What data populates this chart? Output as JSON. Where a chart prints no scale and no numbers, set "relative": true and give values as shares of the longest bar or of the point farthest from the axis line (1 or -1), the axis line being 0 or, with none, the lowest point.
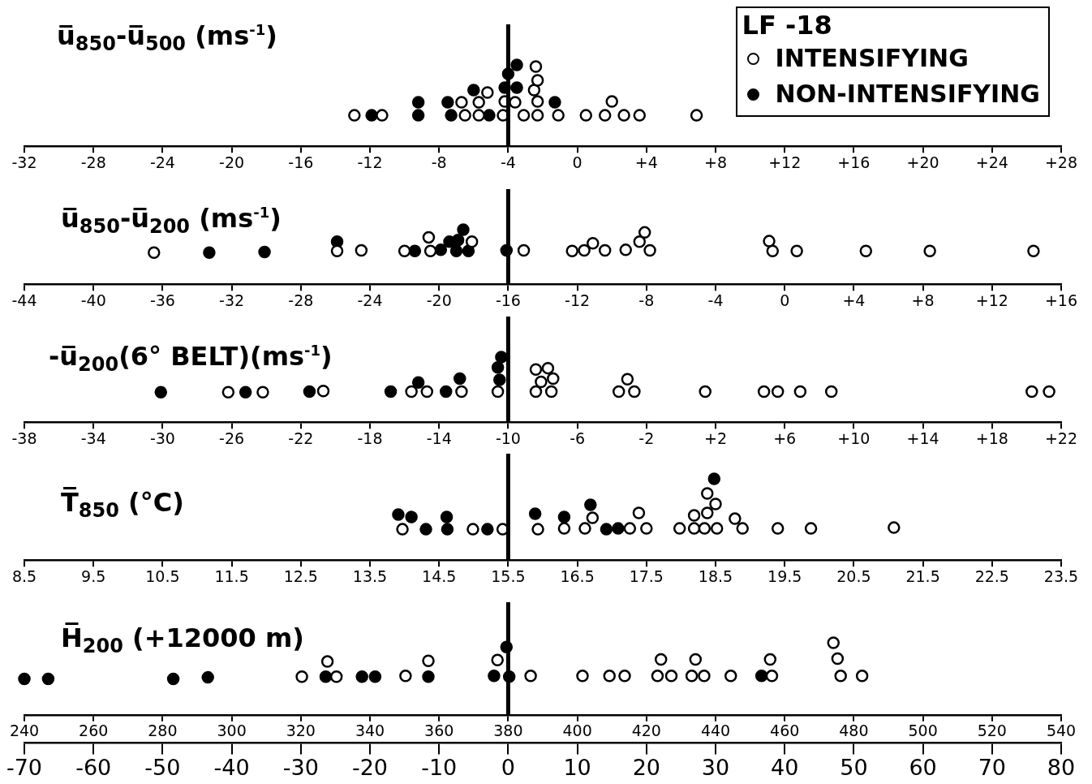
{
  "chart_data": [
    {
      "type": "scatter",
      "title": "u̅$_{850}$-u̅$_{500}$ (ms$^{-1}$)",
      "relative": true,
      "legend": "top right",
      "legend_title": "LF -18",
      "marker": "circle",
      "xlim": [
        -32,
        28
      ],
      "xticks": [
        -32,
        -28,
        -24,
        -20,
        -16,
        -12,
        -8,
        -4,
        0,
        {
          "value": 4,
          "label": "+4"
        },
        {
          "value": 8,
          "label": "+8"
        },
        {
          "value": 12,
          "label": "+12"
        },
        {
          "value": 16,
          "label": "+16"
        },
        {
          "value": 20,
          "label": "+20"
        },
        {
          "value": 24,
          "label": "+24"
        },
        {
          "value": 28,
          "label": "+28"
        }
      ],
      "ref_lines": [
        {
          "axis": "x",
          "value": -4
        }
      ],
      "series": [
        {
          "name": "INTENSIFYING",
          "color": "#000000",
          "x": [
            -12.9,
            -11.3,
            -6.5,
            -5.7,
            -4.3,
            -3.1,
            -2.3,
            -1.1,
            0.5,
            1.6,
            2.7,
            3.6,
            6.9,
            -6.7,
            -5.7,
            -4.2,
            -3.6,
            -2.3,
            2.0,
            -5.2,
            -2.5,
            -2.3,
            -2.4
          ],
          "values": [
            0.38,
            0.38,
            0.38,
            0.38,
            0.38,
            0.38,
            0.38,
            0.38,
            0.38,
            0.38,
            0.38,
            0.38,
            0.38,
            0.54,
            0.54,
            0.55,
            0.54,
            0.55,
            0.55,
            0.66,
            0.69,
            0.81,
            0.98
          ]
        },
        {
          "name": "NON-INTENSIFYING",
          "color": "#000000",
          "x": [
            -11.9,
            -9.2,
            -7.3,
            -5.1,
            -9.2,
            -7.5,
            -1.3,
            -6.0,
            -4.2,
            -3.5,
            -4.0,
            -3.5
          ],
          "values": [
            0.38,
            0.38,
            0.38,
            0.38,
            0.54,
            0.54,
            0.54,
            0.69,
            0.72,
            0.72,
            0.89,
            1
          ]
        }
      ]
    },
    {
      "type": "scatter",
      "title": "u̅$_{850}$-u̅$_{200}$ (ms$^{-1}$)",
      "relative": true,
      "marker": "circle",
      "xlim": [
        -44,
        16
      ],
      "xticks": [
        -44,
        -40,
        -36,
        -32,
        -28,
        -24,
        -20,
        -16,
        -12,
        -8,
        -4,
        0,
        {
          "value": 4,
          "label": "+4"
        },
        {
          "value": 8,
          "label": "+8"
        },
        {
          "value": 12,
          "label": "+12"
        },
        {
          "value": 16,
          "label": "+16"
        }
      ],
      "ref_lines": [
        {
          "axis": "x",
          "value": -16
        }
      ],
      "series": [
        {
          "color": "#000000",
          "x": [
            -36.5,
            -25.9,
            -24.5,
            -22.0,
            -20.6,
            -20.5,
            -18.1,
            -15.1,
            -12.3,
            -11.6,
            -11.1,
            -10.4,
            -9.2,
            -8.4,
            -8.1,
            -7.8,
            -0.9,
            -0.7,
            0.7,
            4.7,
            8.4,
            14.4
          ],
          "values": [
            0.58,
            0.61,
            0.62,
            0.61,
            0.86,
            0.61,
            0.78,
            0.62,
            0.61,
            0.62,
            0.75,
            0.62,
            0.63,
            0.78,
            0.95,
            0.62,
            0.79,
            0.61,
            0.61,
            0.61,
            0.61,
            0.61
          ]
        },
        {
          "color": "#000000",
          "x": [
            -33.3,
            -30.1,
            -25.9,
            -21.4,
            -19.9,
            -19.4,
            -19.0,
            -18.9,
            -18.6,
            -18.3,
            -16.1
          ],
          "values": [
            0.58,
            0.59,
            0.78,
            0.61,
            0.63,
            0.78,
            0.61,
            0.81,
            1,
            0.61,
            0.62
          ]
        }
      ]
    },
    {
      "type": "scatter",
      "title": "-u̅$_{200}$(6° BELT)(ms$^{-1}$)",
      "relative": true,
      "marker": "circle",
      "xlim": [
        -38,
        22
      ],
      "xticks": [
        -38,
        -34,
        -30,
        -26,
        -22,
        -18,
        -14,
        -10,
        -6,
        -2,
        {
          "value": 2,
          "label": "+2"
        },
        {
          "value": 6,
          "label": "+6"
        },
        {
          "value": 10,
          "label": "+10"
        },
        {
          "value": 14,
          "label": "+14"
        },
        {
          "value": 18,
          "label": "+18"
        },
        {
          "value": 22,
          "label": "+22"
        }
      ],
      "ref_lines": [
        {
          "axis": "x",
          "value": -10
        }
      ],
      "series": [
        {
          "color": "#000000",
          "x": [
            -26.2,
            -24.2,
            -20.7,
            -15.6,
            -14.7,
            -12.7,
            -10.6,
            -8.4,
            -7.5,
            -8.1,
            -7.4,
            -8.4,
            -7.7,
            -3.6,
            -2.7,
            -3.1,
            1.4,
            4.8,
            5.6,
            6.9,
            8.7,
            20.3,
            21.3
          ],
          "values": [
            0.46,
            0.46,
            0.48,
            0.47,
            0.47,
            0.47,
            0.47,
            0.47,
            0.47,
            0.62,
            0.67,
            0.81,
            0.83,
            0.47,
            0.47,
            0.66,
            0.47,
            0.47,
            0.47,
            0.47,
            0.47,
            0.47,
            0.47
          ]
        },
        {
          "color": "#000000",
          "x": [
            -30.1,
            -25.2,
            -21.5,
            -16.8,
            -15.2,
            -13.6,
            -12.8,
            -10.5,
            -10.6,
            -10.4
          ],
          "values": [
            0.46,
            0.46,
            0.47,
            0.47,
            0.61,
            0.47,
            0.67,
            0.65,
            0.84,
            1
          ]
        }
      ]
    },
    {
      "type": "scatter",
      "title": "T̅$_{850}$ (°C)",
      "relative": true,
      "marker": "circle",
      "xlim": [
        8.5,
        23.5
      ],
      "xticks": [
        8.5,
        9.5,
        10.5,
        11.5,
        12.5,
        13.5,
        14.5,
        15.5,
        16.5,
        17.5,
        18.5,
        19.5,
        20.5,
        21.5,
        22.5,
        23.5
      ],
      "ref_lines": [
        {
          "axis": "x",
          "value": 15.5
        }
      ],
      "series": [
        {
          "color": "#000000",
          "x": [
            13.97,
            14.99,
            15.42,
            15.93,
            16.31,
            16.61,
            16.72,
            17.26,
            17.5,
            17.39,
            17.98,
            18.19,
            18.34,
            18.52,
            18.19,
            18.38,
            18.5,
            18.38,
            18.78,
            18.89,
            19.4,
            19.88,
            21.08
          ],
          "values": [
            0.38,
            0.38,
            0.38,
            0.38,
            0.39,
            0.39,
            0.52,
            0.39,
            0.39,
            0.58,
            0.39,
            0.39,
            0.39,
            0.39,
            0.55,
            0.58,
            0.69,
            0.82,
            0.51,
            0.39,
            0.39,
            0.39,
            0.4
          ]
        },
        {
          "color": "#000000",
          "x": [
            13.91,
            14.1,
            14.31,
            14.61,
            14.62,
            15.2,
            15.89,
            16.31,
            16.69,
            16.92,
            17.09,
            18.48
          ],
          "values": [
            0.56,
            0.53,
            0.38,
            0.53,
            0.38,
            0.38,
            0.57,
            0.53,
            0.68,
            0.38,
            0.39,
            1
          ]
        }
      ]
    },
    {
      "type": "scatter",
      "title": "H̅$_{200}$ (+12000 m)",
      "relative": true,
      "marker": "circle",
      "xlim": [
        240,
        540
      ],
      "xticks": [
        240,
        260,
        280,
        300,
        320,
        340,
        360,
        380,
        400,
        420,
        440,
        460,
        480,
        500,
        520,
        540
      ],
      "x2lim": [
        -70,
        80
      ],
      "x2ticks": [
        -70,
        -60,
        -50,
        -40,
        -30,
        -20,
        -10,
        0,
        10,
        20,
        30,
        40,
        50,
        60,
        70,
        80
      ],
      "ref_lines": [
        {
          "axis": "x",
          "value": 380
        }
      ],
      "series": [
        {
          "color": "#000000",
          "x": [
            320.3,
            330.3,
            327.7,
            350.3,
            356.9,
            376.9,
            386.5,
            401.5,
            409.3,
            413.7,
            423.2,
            427.2,
            424.2,
            433.1,
            436.7,
            434.2,
            444.4,
            456.3,
            455.8,
            474.1,
            475.3,
            476.2,
            482.4
          ],
          "values": [
            0.53,
            0.53,
            0.74,
            0.54,
            0.75,
            0.76,
            0.54,
            0.54,
            0.54,
            0.54,
            0.54,
            0.54,
            0.77,
            0.54,
            0.54,
            0.77,
            0.54,
            0.54,
            0.77,
            1,
            0.78,
            0.54,
            0.54
          ]
        },
        {
          "color": "#000000",
          "x": [
            240.0,
            246.9,
            283.1,
            293.1,
            327.2,
            337.7,
            341.5,
            356.9,
            375.9,
            380.3,
            379.5,
            453.3
          ],
          "values": [
            0.5,
            0.5,
            0.5,
            0.52,
            0.53,
            0.53,
            0.53,
            0.53,
            0.54,
            0.53,
            0.94,
            0.54
          ]
        }
      ]
    }
  ]
}
